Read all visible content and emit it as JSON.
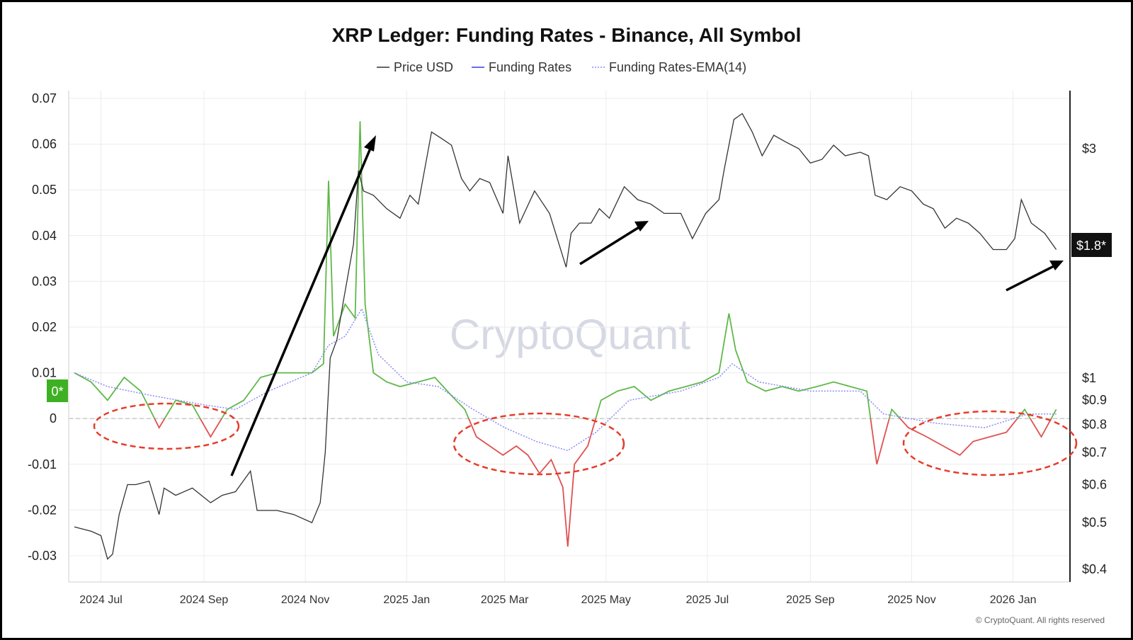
{
  "chart_data": {
    "type": "line",
    "title": "XRP Ledger: Funding Rates - Binance, All Symbol",
    "legend": [
      {
        "name": "Price USD",
        "color": "#333333",
        "style": "solid"
      },
      {
        "name": "Funding Rates",
        "color": "#6b6bf0",
        "style": "solid"
      },
      {
        "name": "Funding Rates-EMA(14)",
        "color": "#8a8af5",
        "style": "dotted"
      }
    ],
    "left_axis": {
      "ticks": [
        0.07,
        0.06,
        0.05,
        0.04,
        0.03,
        0.02,
        0.01,
        0,
        -0.01,
        -0.02,
        -0.03
      ],
      "tick_labels": [
        "0.07",
        "0.06",
        "0.05",
        "0.04",
        "0.03",
        "0.02",
        "0.01",
        "0",
        "-0.01",
        "-0.02",
        "-0.03"
      ],
      "ylim": [
        -0.035,
        0.072
      ]
    },
    "right_axis": {
      "scale": "log",
      "ticks": [
        3,
        1,
        0.9,
        0.8,
        0.7,
        0.6,
        0.5,
        0.4
      ],
      "tick_labels": [
        "$3",
        "$1",
        "$0.9",
        "$0.8",
        "$0.7",
        "$0.6",
        "$0.5",
        "$0.4"
      ],
      "ylim": [
        0.37,
        4.3
      ]
    },
    "x_axis": {
      "labels": [
        "2024 Jul",
        "2024 Sep",
        "2024 Nov",
        "2025 Jan",
        "2025 Mar",
        "2025 May",
        "2025 Jul",
        "2025 Sep",
        "2025 Nov",
        "2026 Jan"
      ],
      "range": [
        "2024-06-15",
        "2026-01-31"
      ]
    },
    "price_series": {
      "name": "Price USD",
      "points": [
        [
          "2024-06-15",
          0.49
        ],
        [
          "2024-06-25",
          0.48
        ],
        [
          "2024-07-01",
          0.47
        ],
        [
          "2024-07-05",
          0.42
        ],
        [
          "2024-07-08",
          0.43
        ],
        [
          "2024-07-12",
          0.52
        ],
        [
          "2024-07-17",
          0.6
        ],
        [
          "2024-07-22",
          0.6
        ],
        [
          "2024-07-30",
          0.61
        ],
        [
          "2024-08-05",
          0.52
        ],
        [
          "2024-08-08",
          0.59
        ],
        [
          "2024-08-15",
          0.57
        ],
        [
          "2024-08-25",
          0.59
        ],
        [
          "2024-09-05",
          0.55
        ],
        [
          "2024-09-12",
          0.57
        ],
        [
          "2024-09-20",
          0.58
        ],
        [
          "2024-09-29",
          0.64
        ],
        [
          "2024-10-03",
          0.53
        ],
        [
          "2024-10-15",
          0.53
        ],
        [
          "2024-10-25",
          0.52
        ],
        [
          "2024-11-05",
          0.5
        ],
        [
          "2024-11-10",
          0.55
        ],
        [
          "2024-11-13",
          0.7
        ],
        [
          "2024-11-16",
          1.1
        ],
        [
          "2024-11-20",
          1.2
        ],
        [
          "2024-11-24",
          1.45
        ],
        [
          "2024-11-30",
          1.9
        ],
        [
          "2024-12-03",
          2.7
        ],
        [
          "2024-12-06",
          2.45
        ],
        [
          "2024-12-12",
          2.4
        ],
        [
          "2024-12-20",
          2.25
        ],
        [
          "2024-12-28",
          2.15
        ],
        [
          "2025-01-03",
          2.4
        ],
        [
          "2025-01-08",
          2.3
        ],
        [
          "2025-01-16",
          3.25
        ],
        [
          "2025-01-22",
          3.15
        ],
        [
          "2025-01-28",
          3.05
        ],
        [
          "2025-02-03",
          2.6
        ],
        [
          "2025-02-08",
          2.45
        ],
        [
          "2025-02-14",
          2.6
        ],
        [
          "2025-02-20",
          2.55
        ],
        [
          "2025-02-28",
          2.2
        ],
        [
          "2025-03-03",
          2.9
        ],
        [
          "2025-03-10",
          2.1
        ],
        [
          "2025-03-19",
          2.45
        ],
        [
          "2025-03-28",
          2.2
        ],
        [
          "2025-04-07",
          1.7
        ],
        [
          "2025-04-10",
          2.0
        ],
        [
          "2025-04-15",
          2.1
        ],
        [
          "2025-04-22",
          2.1
        ],
        [
          "2025-04-27",
          2.25
        ],
        [
          "2025-05-03",
          2.15
        ],
        [
          "2025-05-12",
          2.5
        ],
        [
          "2025-05-20",
          2.35
        ],
        [
          "2025-05-28",
          2.3
        ],
        [
          "2025-06-05",
          2.2
        ],
        [
          "2025-06-15",
          2.2
        ],
        [
          "2025-06-22",
          1.95
        ],
        [
          "2025-06-30",
          2.2
        ],
        [
          "2025-07-08",
          2.35
        ],
        [
          "2025-07-11",
          2.7
        ],
        [
          "2025-07-17",
          3.45
        ],
        [
          "2025-07-22",
          3.55
        ],
        [
          "2025-07-28",
          3.25
        ],
        [
          "2025-08-03",
          2.9
        ],
        [
          "2025-08-10",
          3.2
        ],
        [
          "2025-08-17",
          3.1
        ],
        [
          "2025-08-25",
          3.0
        ],
        [
          "2025-09-01",
          2.8
        ],
        [
          "2025-09-08",
          2.85
        ],
        [
          "2025-09-15",
          3.05
        ],
        [
          "2025-09-22",
          2.9
        ],
        [
          "2025-10-01",
          2.95
        ],
        [
          "2025-10-06",
          2.9
        ],
        [
          "2025-10-10",
          2.4
        ],
        [
          "2025-10-17",
          2.35
        ],
        [
          "2025-10-25",
          2.5
        ],
        [
          "2025-11-01",
          2.45
        ],
        [
          "2025-11-08",
          2.3
        ],
        [
          "2025-11-14",
          2.25
        ],
        [
          "2025-11-21",
          2.05
        ],
        [
          "2025-11-28",
          2.15
        ],
        [
          "2025-12-05",
          2.1
        ],
        [
          "2025-12-12",
          2.0
        ],
        [
          "2025-12-20",
          1.85
        ],
        [
          "2025-12-28",
          1.85
        ],
        [
          "2026-01-02",
          1.95
        ],
        [
          "2026-01-06",
          2.35
        ],
        [
          "2026-01-12",
          2.1
        ],
        [
          "2026-01-20",
          2.0
        ],
        [
          "2026-01-27",
          1.85
        ]
      ]
    },
    "funding_rate_series": {
      "name": "Funding Rates",
      "positive_color": "#5fb84a",
      "negative_color": "#e05050",
      "points": [
        [
          "2024-06-15",
          0.01
        ],
        [
          "2024-06-25",
          0.008
        ],
        [
          "2024-07-05",
          0.004
        ],
        [
          "2024-07-15",
          0.009
        ],
        [
          "2024-07-25",
          0.006
        ],
        [
          "2024-08-05",
          -0.002
        ],
        [
          "2024-08-15",
          0.004
        ],
        [
          "2024-08-25",
          0.003
        ],
        [
          "2024-09-05",
          -0.004
        ],
        [
          "2024-09-15",
          0.002
        ],
        [
          "2024-09-25",
          0.004
        ],
        [
          "2024-10-05",
          0.009
        ],
        [
          "2024-10-15",
          0.01
        ],
        [
          "2024-10-25",
          0.01
        ],
        [
          "2024-11-05",
          0.01
        ],
        [
          "2024-11-12",
          0.012
        ],
        [
          "2024-11-15",
          0.052
        ],
        [
          "2024-11-18",
          0.018
        ],
        [
          "2024-11-25",
          0.025
        ],
        [
          "2024-12-01",
          0.022
        ],
        [
          "2024-12-04",
          0.065
        ],
        [
          "2024-12-07",
          0.025
        ],
        [
          "2024-12-12",
          0.01
        ],
        [
          "2024-12-20",
          0.008
        ],
        [
          "2024-12-28",
          0.007
        ],
        [
          "2025-01-08",
          0.008
        ],
        [
          "2025-01-18",
          0.009
        ],
        [
          "2025-01-28",
          0.005
        ],
        [
          "2025-02-05",
          0.002
        ],
        [
          "2025-02-12",
          -0.004
        ],
        [
          "2025-02-20",
          -0.006
        ],
        [
          "2025-02-28",
          -0.008
        ],
        [
          "2025-03-08",
          -0.006
        ],
        [
          "2025-03-15",
          -0.008
        ],
        [
          "2025-03-22",
          -0.012
        ],
        [
          "2025-03-29",
          -0.009
        ],
        [
          "2025-04-05",
          -0.015
        ],
        [
          "2025-04-08",
          -0.028
        ],
        [
          "2025-04-12",
          -0.01
        ],
        [
          "2025-04-20",
          -0.006
        ],
        [
          "2025-04-28",
          0.004
        ],
        [
          "2025-05-08",
          0.006
        ],
        [
          "2025-05-18",
          0.007
        ],
        [
          "2025-05-28",
          0.004
        ],
        [
          "2025-06-08",
          0.006
        ],
        [
          "2025-06-18",
          0.007
        ],
        [
          "2025-06-28",
          0.008
        ],
        [
          "2025-07-08",
          0.01
        ],
        [
          "2025-07-14",
          0.023
        ],
        [
          "2025-07-18",
          0.015
        ],
        [
          "2025-07-25",
          0.008
        ],
        [
          "2025-08-05",
          0.006
        ],
        [
          "2025-08-15",
          0.007
        ],
        [
          "2025-08-25",
          0.006
        ],
        [
          "2025-09-05",
          0.007
        ],
        [
          "2025-09-15",
          0.008
        ],
        [
          "2025-09-25",
          0.007
        ],
        [
          "2025-10-05",
          0.006
        ],
        [
          "2025-10-11",
          -0.01
        ],
        [
          "2025-10-20",
          0.002
        ],
        [
          "2025-10-30",
          -0.002
        ],
        [
          "2025-11-10",
          -0.004
        ],
        [
          "2025-11-20",
          -0.006
        ],
        [
          "2025-11-30",
          -0.008
        ],
        [
          "2025-12-08",
          -0.005
        ],
        [
          "2025-12-18",
          -0.004
        ],
        [
          "2025-12-28",
          -0.003
        ],
        [
          "2026-01-08",
          0.002
        ],
        [
          "2026-01-18",
          -0.004
        ],
        [
          "2026-01-27",
          0.002
        ]
      ]
    },
    "ema_series": {
      "name": "Funding Rates-EMA(14)",
      "points": [
        [
          "2024-06-15",
          0.01
        ],
        [
          "2024-07-05",
          0.007
        ],
        [
          "2024-08-01",
          0.005
        ],
        [
          "2024-09-01",
          0.003
        ],
        [
          "2024-09-20",
          0.002
        ],
        [
          "2024-10-10",
          0.006
        ],
        [
          "2024-11-05",
          0.01
        ],
        [
          "2024-11-15",
          0.016
        ],
        [
          "2024-11-25",
          0.018
        ],
        [
          "2024-12-05",
          0.024
        ],
        [
          "2024-12-15",
          0.014
        ],
        [
          "2025-01-01",
          0.008
        ],
        [
          "2025-01-20",
          0.007
        ],
        [
          "2025-02-10",
          0.002
        ],
        [
          "2025-03-01",
          -0.002
        ],
        [
          "2025-03-20",
          -0.005
        ],
        [
          "2025-04-08",
          -0.007
        ],
        [
          "2025-04-25",
          -0.003
        ],
        [
          "2025-05-15",
          0.004
        ],
        [
          "2025-06-15",
          0.006
        ],
        [
          "2025-07-08",
          0.009
        ],
        [
          "2025-07-16",
          0.012
        ],
        [
          "2025-08-01",
          0.008
        ],
        [
          "2025-09-01",
          0.006
        ],
        [
          "2025-10-01",
          0.006
        ],
        [
          "2025-10-15",
          0.001
        ],
        [
          "2025-11-15",
          -0.001
        ],
        [
          "2025-12-15",
          -0.002
        ],
        [
          "2026-01-10",
          0.001
        ],
        [
          "2026-01-27",
          0.001
        ]
      ]
    },
    "badges": {
      "left_current": "0*",
      "right_current": "$1.8*"
    },
    "annotations": {
      "arrows": 4,
      "dashed_ellipses": 3
    },
    "watermark": "CryptoQuant",
    "copyright": "© CryptoQuant. All rights reserved",
    "grid": true,
    "legend_position": "top-center"
  }
}
